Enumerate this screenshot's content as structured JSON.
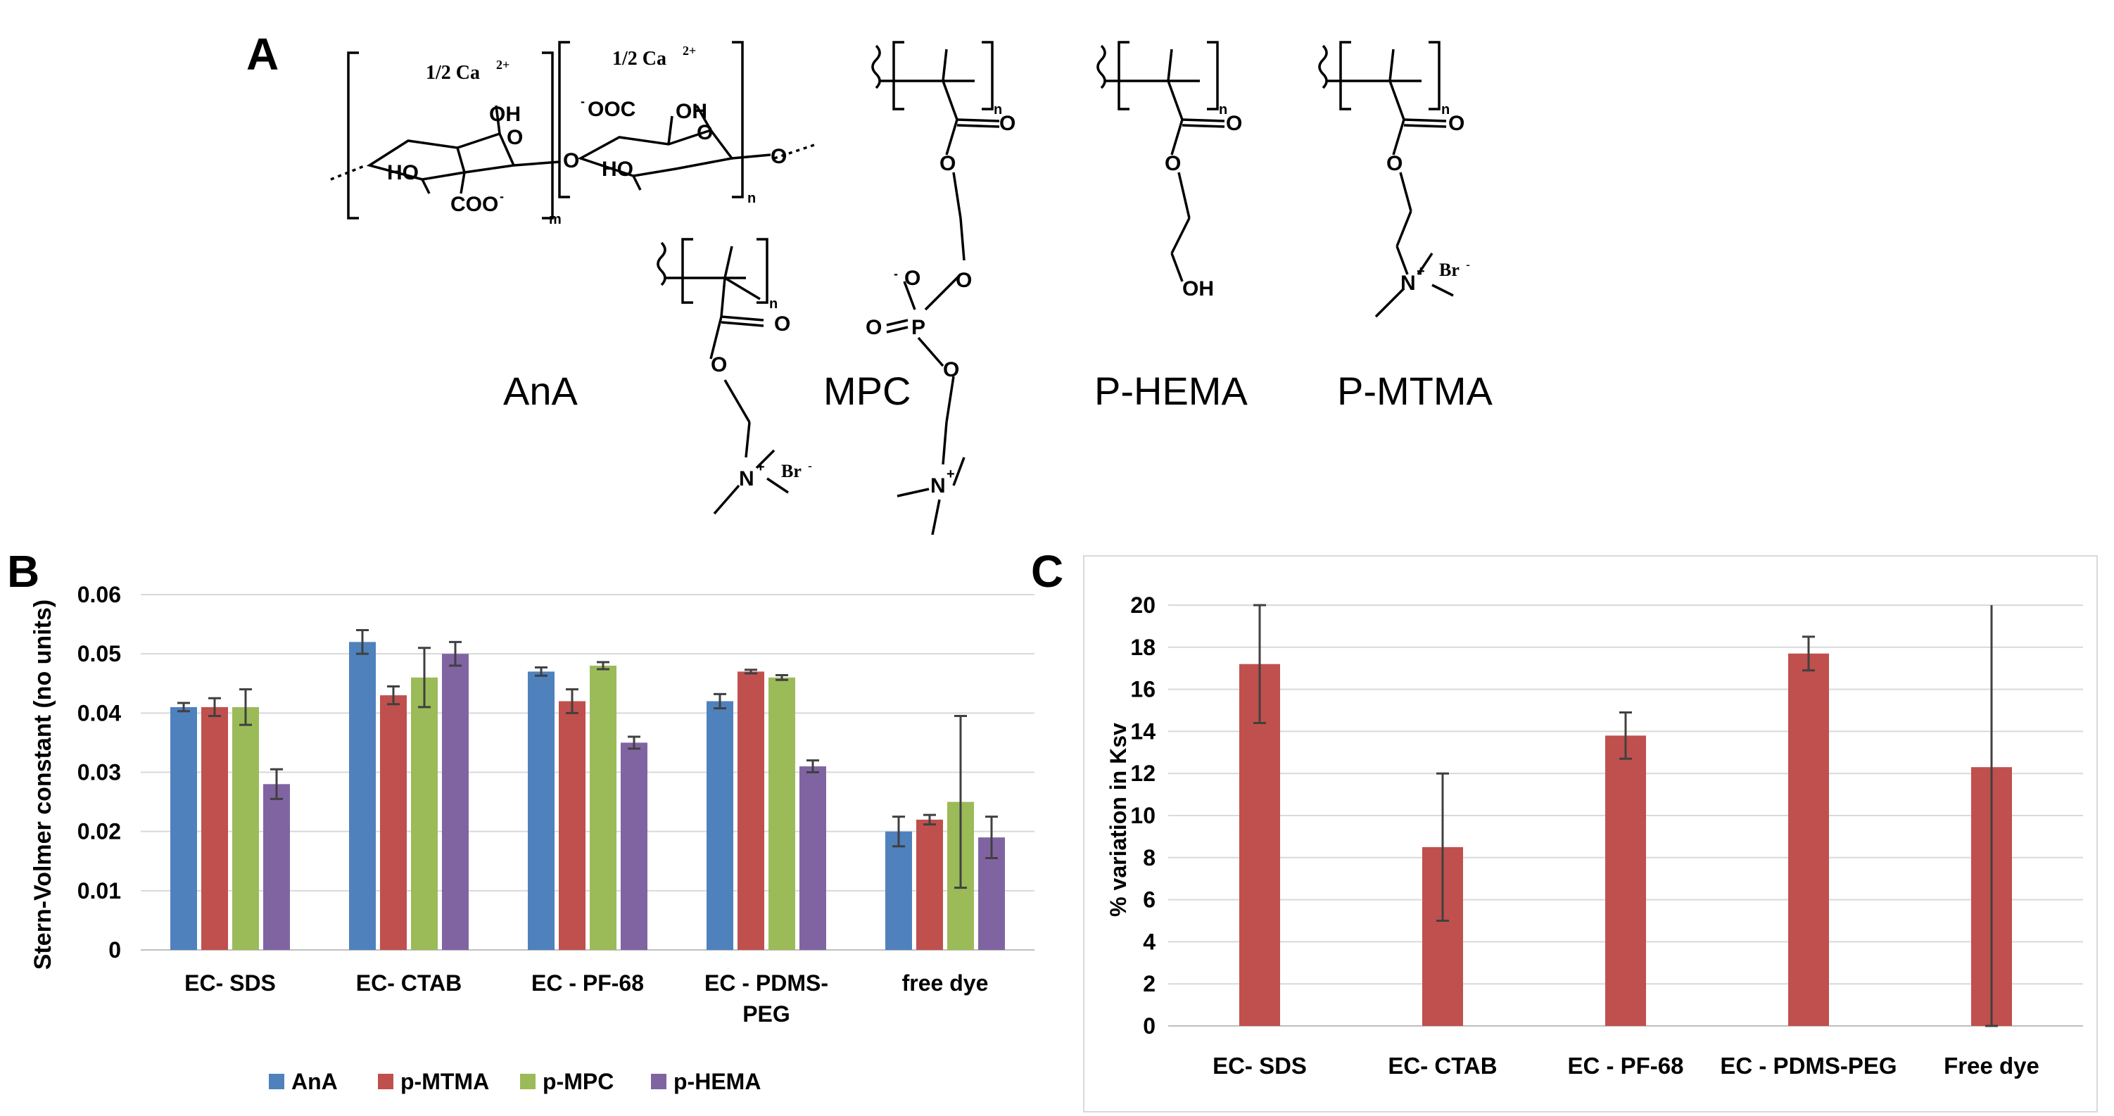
{
  "panels": {
    "a": "A",
    "b": "B",
    "c": "C"
  },
  "structures": {
    "ana": {
      "name": "AnA",
      "ca_left": "1/2 Ca",
      "ca_right": "1/2 Ca",
      "ca_charge": "2+",
      "oh": "OH",
      "ho": "HO",
      "o": "O",
      "coo": "COO",
      "ooc": "OOC",
      "minus": "-",
      "sub_m": "m",
      "sub_n": "n"
    },
    "mpc": {
      "name": "MPC",
      "p": "P",
      "o": "O",
      "plus": "+",
      "minus": "-",
      "sub_n": "n"
    },
    "phema": {
      "name": "P-HEMA",
      "o": "O",
      "oh": "OH",
      "sub_n": "n"
    },
    "pmtma": {
      "name": "P-MTMA",
      "o": "O",
      "n": "N",
      "plus": "+",
      "br": "Br",
      "minus": "-",
      "sub_n": "n"
    },
    "mtma_extra": {
      "o": "O",
      "n": "N",
      "plus": "+",
      "br": "Br",
      "minus": "-",
      "sub_n": "n"
    }
  },
  "colors": {
    "AnA": "#4f81bd",
    "p-MTMA": "#c0504d",
    "p-MPC": "#9bbb59",
    "p-HEMA": "#8064a2",
    "barC": "#c0504d",
    "grid": "#d9d9d9",
    "error": "#404040"
  },
  "chart_data": [
    {
      "id": "B",
      "type": "bar",
      "title": "",
      "xlabel": "",
      "ylabel": "Stern-Volmer constant (no units)",
      "categories": [
        "EC- SDS",
        "EC- CTAB",
        "EC - PF-68",
        "EC - PDMS-PEG",
        "free dye"
      ],
      "ylim": [
        0,
        0.06
      ],
      "yticks": [
        "0",
        "0.01",
        "0.02",
        "0.03",
        "0.04",
        "0.05",
        "0.06"
      ],
      "grid": true,
      "legend": "bottom",
      "series": [
        {
          "name": "AnA",
          "values": [
            0.041,
            0.052,
            0.047,
            0.042,
            0.02
          ],
          "errors": [
            0.0007,
            0.002,
            0.0007,
            0.0012,
            0.0025
          ]
        },
        {
          "name": "p-MTMA",
          "values": [
            0.041,
            0.043,
            0.042,
            0.047,
            0.022
          ],
          "errors": [
            0.0015,
            0.0015,
            0.002,
            0.0003,
            0.0008
          ]
        },
        {
          "name": "p-MPC",
          "values": [
            0.041,
            0.046,
            0.048,
            0.046,
            0.025
          ],
          "errors": [
            0.003,
            0.005,
            0.0006,
            0.0004,
            0.0145
          ]
        },
        {
          "name": "p-HEMA",
          "values": [
            0.028,
            0.05,
            0.035,
            0.031,
            0.019
          ],
          "errors": [
            0.0025,
            0.002,
            0.001,
            0.001,
            0.0035
          ]
        }
      ]
    },
    {
      "id": "C",
      "type": "bar",
      "title": "",
      "xlabel": "",
      "ylabel": "% variation in Ksv",
      "categories": [
        "EC- SDS",
        "EC- CTAB",
        "EC - PF-68",
        "EC - PDMS-PEG",
        "Free dye"
      ],
      "ylim": [
        0,
        20
      ],
      "yticks": [
        "0",
        "2",
        "4",
        "6",
        "8",
        "10",
        "12",
        "14",
        "16",
        "18",
        "20"
      ],
      "grid": true,
      "legend": "none",
      "series": [
        {
          "name": "% variation in Ksv",
          "values": [
            17.2,
            8.5,
            13.8,
            17.7,
            12.3
          ],
          "errors": [
            2.8,
            3.5,
            1.1,
            0.8,
            12.3
          ]
        }
      ]
    }
  ]
}
